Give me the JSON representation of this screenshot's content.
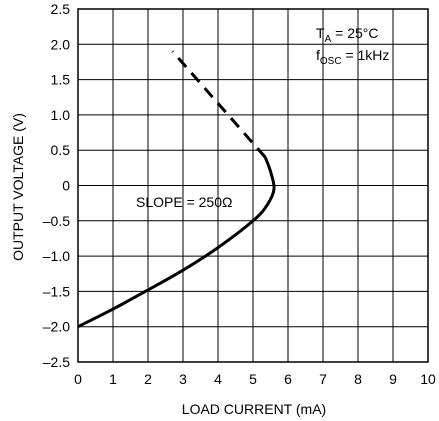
{
  "chart_data": {
    "type": "line",
    "xlabel": "LOAD CURRENT (mA)",
    "ylabel": "OUTPUT VOLTAGE (V)",
    "xlim": [
      0,
      10
    ],
    "ylim": [
      -2.5,
      2.5
    ],
    "x_ticks": [
      "0",
      "1",
      "2",
      "3",
      "4",
      "5",
      "6",
      "7",
      "8",
      "9",
      "10"
    ],
    "y_ticks": [
      "2.5",
      "2.0",
      "1.5",
      "1.0",
      "0.5",
      "0",
      "–0.5",
      "–1.0",
      "–1.5",
      "–2.0",
      "–2.5"
    ],
    "grid": true,
    "series": [
      {
        "style": "solid",
        "points": [
          [
            0,
            -2.0
          ],
          [
            1,
            -1.75
          ],
          [
            2,
            -1.48
          ],
          [
            3,
            -1.2
          ],
          [
            4,
            -0.88
          ],
          [
            5,
            -0.5
          ],
          [
            5.4,
            -0.28
          ],
          [
            5.6,
            -0.05
          ],
          [
            5.5,
            0.2
          ],
          [
            5.35,
            0.4
          ]
        ]
      },
      {
        "style": "dashed",
        "points": [
          [
            5.35,
            0.4
          ],
          [
            2.7,
            1.9
          ]
        ]
      }
    ],
    "annotations": {
      "slope": "SLOPE = 250Ω",
      "ta_main": "T",
      "ta_sub": "A",
      "ta_rest": " = 25°C",
      "fosc_main": "f",
      "fosc_sub": "OSC",
      "fosc_rest": " = 1kHz"
    }
  }
}
